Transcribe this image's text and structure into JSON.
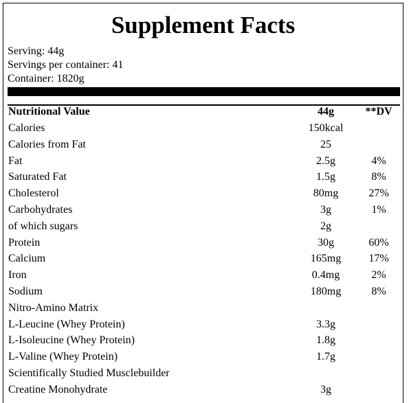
{
  "title": "Supplement Facts",
  "serving": {
    "size": "Serving: 44g",
    "per_container": "Servings per container: 41",
    "container": "Container: 1820g"
  },
  "table": {
    "header": {
      "name": "Nutritional Value",
      "amount": "44g",
      "dv": "**DV"
    },
    "rows": [
      {
        "name": "Calories",
        "amount": "150kcal",
        "dv": ""
      },
      {
        "name": "Calories from Fat",
        "amount": "25",
        "dv": ""
      },
      {
        "name": "Fat",
        "amount": "2.5g",
        "dv": "4%"
      },
      {
        "name": "Saturated Fat",
        "amount": "1.5g",
        "dv": "8%"
      },
      {
        "name": "Cholesterol",
        "amount": "80mg",
        "dv": "27%"
      },
      {
        "name": "Carbohydrates",
        "amount": "3g",
        "dv": "1%"
      },
      {
        "name": "of which sugars",
        "amount": "2g",
        "dv": ""
      },
      {
        "name": "Protein",
        "amount": "30g",
        "dv": "60%"
      },
      {
        "name": "Calcium",
        "amount": "165mg",
        "dv": "17%"
      },
      {
        "name": "Iron",
        "amount": "0.4mg",
        "dv": "2%"
      },
      {
        "name": "Sodium",
        "amount": "180mg",
        "dv": "8%"
      },
      {
        "name": "Nitro-Amino Matrix",
        "amount": "",
        "dv": ""
      },
      {
        "name": "L-Leucine (Whey Protein)",
        "amount": "3.3g",
        "dv": ""
      },
      {
        "name": "L-Isoleucine (Whey Protein)",
        "amount": "1.8g",
        "dv": ""
      },
      {
        "name": "L-Valine (Whey Protein)",
        "amount": "1.7g",
        "dv": ""
      },
      {
        "name": "Scientifically Studied Musclebuilder",
        "amount": "",
        "dv": ""
      },
      {
        "name": "Creatine Monohydrate",
        "amount": "3g",
        "dv": ""
      }
    ]
  }
}
